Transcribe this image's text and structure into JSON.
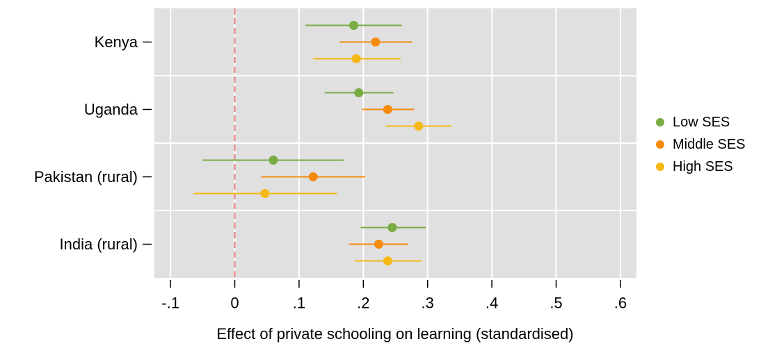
{
  "chart_data": {
    "type": "scatter",
    "subtype": "coefficient-plot-with-confidence-intervals",
    "orientation": "horizontal",
    "xlabel": "Effect of private schooling on learning (standardised)",
    "ylabel": "",
    "xlim": [
      -0.125,
      0.625
    ],
    "x_ticks": [
      -0.1,
      0,
      0.1,
      0.2,
      0.3,
      0.4,
      0.5,
      0.6
    ],
    "x_tick_labels": [
      "-.1",
      "0",
      ".1",
      ".2",
      ".3",
      ".4",
      ".5",
      ".6"
    ],
    "reference_line": {
      "x": 0,
      "style": "dashed",
      "color": "#f08080"
    },
    "grid": true,
    "legend_position": "right",
    "categories": [
      "Kenya",
      "Uganda",
      "Pakistan (rural)",
      "India (rural)"
    ],
    "series": [
      {
        "name": "Low SES",
        "color": "#77ab43",
        "points": [
          {
            "category": "Kenya",
            "estimate": 0.185,
            "ci_low": 0.11,
            "ci_high": 0.26
          },
          {
            "category": "Uganda",
            "estimate": 0.193,
            "ci_low": 0.14,
            "ci_high": 0.247
          },
          {
            "category": "Pakistan (rural)",
            "estimate": 0.06,
            "ci_low": -0.05,
            "ci_high": 0.17
          },
          {
            "category": "India (rural)",
            "estimate": 0.245,
            "ci_low": 0.196,
            "ci_high": 0.297
          }
        ]
      },
      {
        "name": "Middle SES",
        "color": "#f58a0d",
        "points": [
          {
            "category": "Kenya",
            "estimate": 0.219,
            "ci_low": 0.163,
            "ci_high": 0.276
          },
          {
            "category": "Uganda",
            "estimate": 0.238,
            "ci_low": 0.198,
            "ci_high": 0.279
          },
          {
            "category": "Pakistan (rural)",
            "estimate": 0.122,
            "ci_low": 0.041,
            "ci_high": 0.203
          },
          {
            "category": "India (rural)",
            "estimate": 0.224,
            "ci_low": 0.178,
            "ci_high": 0.27
          }
        ]
      },
      {
        "name": "High SES",
        "color": "#f5b915",
        "points": [
          {
            "category": "Kenya",
            "estimate": 0.189,
            "ci_low": 0.122,
            "ci_high": 0.258
          },
          {
            "category": "Uganda",
            "estimate": 0.286,
            "ci_low": 0.235,
            "ci_high": 0.337
          },
          {
            "category": "Pakistan (rural)",
            "estimate": 0.047,
            "ci_low": -0.064,
            "ci_high": 0.159
          },
          {
            "category": "India (rural)",
            "estimate": 0.238,
            "ci_low": 0.186,
            "ci_high": 0.291
          }
        ]
      }
    ]
  },
  "colors": {
    "plot_background": "#e0e0e0",
    "gridline": "#ffffff",
    "reference_line": "#f08080"
  }
}
